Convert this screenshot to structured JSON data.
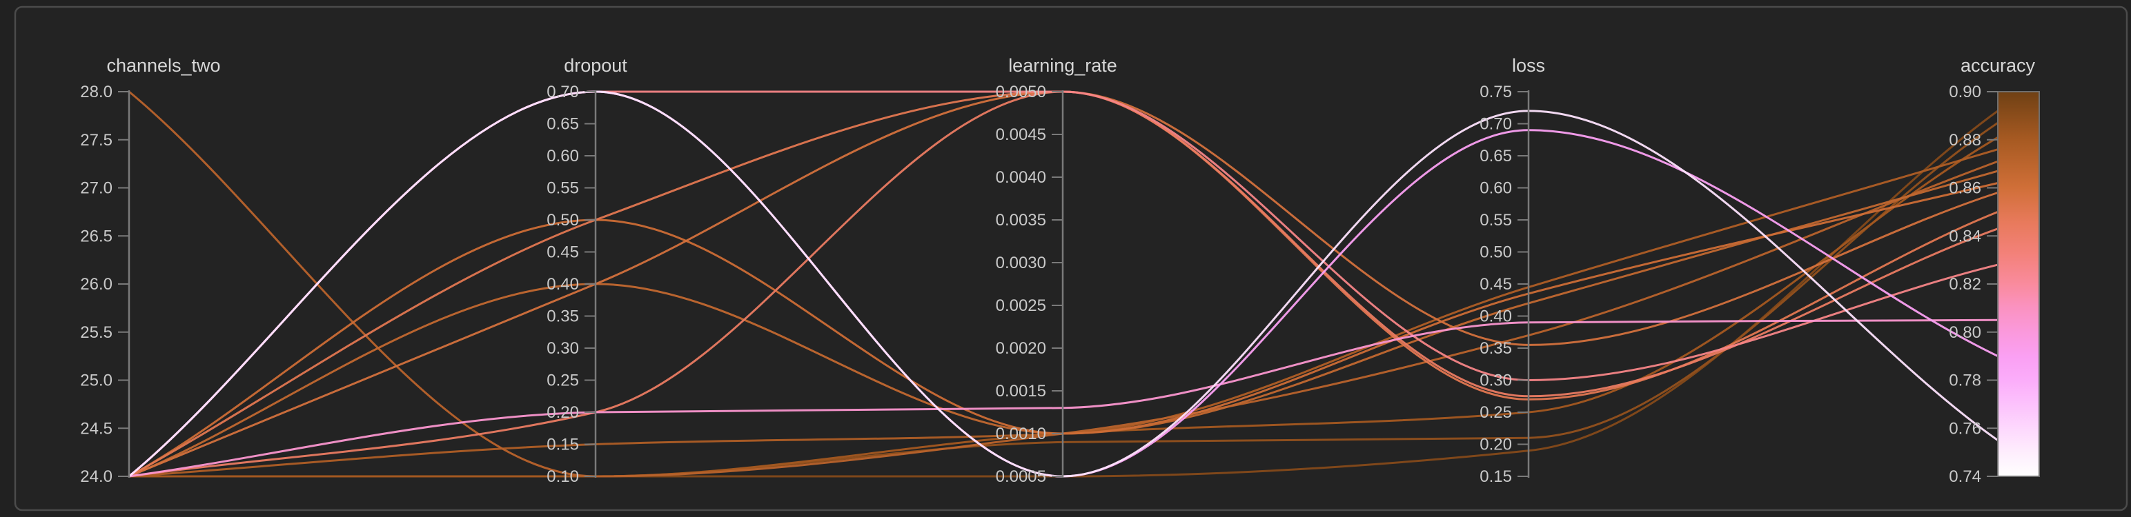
{
  "panel": {
    "background": "#232323",
    "border_color": "#4b4b4b",
    "axis_color": "#7a7a7a",
    "text_color": "#cfcfcf"
  },
  "chart_data": {
    "type": "parallel-coordinates",
    "color_by": "accuracy",
    "legend_position": "right-colorbar",
    "grid": false,
    "axes": [
      {
        "key": "channels_two",
        "label": "channels_two",
        "min": 24.0,
        "max": 28.0,
        "tick_values": [
          28.0,
          27.5,
          27.0,
          26.5,
          26.0,
          25.5,
          25.0,
          24.5,
          24.0
        ],
        "tick_labels": [
          "28.0",
          "27.5",
          "27.0",
          "26.5",
          "26.0",
          "25.5",
          "25.0",
          "24.5",
          "24.0"
        ]
      },
      {
        "key": "dropout",
        "label": "dropout",
        "min": 0.1,
        "max": 0.7,
        "tick_values": [
          0.7,
          0.65,
          0.6,
          0.55,
          0.5,
          0.45,
          0.4,
          0.35,
          0.3,
          0.25,
          0.2,
          0.15,
          0.1
        ],
        "tick_labels": [
          "0.70",
          "0.65",
          "0.60",
          "0.55",
          "0.50",
          "0.45",
          "0.40",
          "0.35",
          "0.30",
          "0.25",
          "0.20",
          "0.15",
          "0.10"
        ]
      },
      {
        "key": "learning_rate",
        "label": "learning_rate",
        "min": 0.0005,
        "max": 0.005,
        "tick_values": [
          0.005,
          0.0045,
          0.004,
          0.0035,
          0.003,
          0.0025,
          0.002,
          0.0015,
          0.001,
          0.0005
        ],
        "tick_labels": [
          "0.0050",
          "0.0045",
          "0.0040",
          "0.0035",
          "0.0030",
          "0.0025",
          "0.0020",
          "0.0015",
          "0.0010",
          "0.0005"
        ]
      },
      {
        "key": "loss",
        "label": "loss",
        "min": 0.15,
        "max": 0.75,
        "tick_values": [
          0.75,
          0.7,
          0.65,
          0.6,
          0.55,
          0.5,
          0.45,
          0.4,
          0.35,
          0.3,
          0.25,
          0.2,
          0.15
        ],
        "tick_labels": [
          "0.75",
          "0.70",
          "0.65",
          "0.60",
          "0.55",
          "0.50",
          "0.45",
          "0.40",
          "0.35",
          "0.30",
          "0.25",
          "0.20",
          "0.15"
        ]
      },
      {
        "key": "accuracy",
        "label": "accuracy",
        "min": 0.74,
        "max": 0.9,
        "tick_values": [
          0.9,
          0.88,
          0.86,
          0.84,
          0.82,
          0.8,
          0.78,
          0.76,
          0.74
        ],
        "tick_labels": [
          "0.90",
          "0.88",
          "0.86",
          "0.84",
          "0.82",
          "0.80",
          "0.78",
          "0.76",
          "0.74"
        ]
      }
    ],
    "runs": [
      {
        "channels_two": 24,
        "dropout": 0.7,
        "learning_rate": 0.0005,
        "loss": 0.72,
        "accuracy": 0.755
      },
      {
        "channels_two": 24,
        "dropout": 0.7,
        "learning_rate": 0.0005,
        "loss": 0.69,
        "accuracy": 0.79
      },
      {
        "channels_two": 24,
        "dropout": 0.2,
        "learning_rate": 0.0013,
        "loss": 0.39,
        "accuracy": 0.805
      },
      {
        "channels_two": 24,
        "dropout": 0.7,
        "learning_rate": 0.005,
        "loss": 0.3,
        "accuracy": 0.828
      },
      {
        "channels_two": 24,
        "dropout": 0.2,
        "learning_rate": 0.005,
        "loss": 0.275,
        "accuracy": 0.843
      },
      {
        "channels_two": 24,
        "dropout": 0.5,
        "learning_rate": 0.005,
        "loss": 0.27,
        "accuracy": 0.85
      },
      {
        "channels_two": 24,
        "dropout": 0.4,
        "learning_rate": 0.005,
        "loss": 0.355,
        "accuracy": 0.858
      },
      {
        "channels_two": 24,
        "dropout": 0.5,
        "learning_rate": 0.001,
        "loss": 0.435,
        "accuracy": 0.862
      },
      {
        "channels_two": 24,
        "dropout": 0.4,
        "learning_rate": 0.001,
        "loss": 0.42,
        "accuracy": 0.867
      },
      {
        "channels_two": 28,
        "dropout": 0.1,
        "learning_rate": 0.001,
        "loss": 0.37,
        "accuracy": 0.871
      },
      {
        "channels_two": 24,
        "dropout": 0.15,
        "learning_rate": 0.001,
        "loss": 0.445,
        "accuracy": 0.876
      },
      {
        "channels_two": 24,
        "dropout": 0.1,
        "learning_rate": 0.001,
        "loss": 0.25,
        "accuracy": 0.881
      },
      {
        "channels_two": 24,
        "dropout": 0.1,
        "learning_rate": 0.0009,
        "loss": 0.21,
        "accuracy": 0.887
      },
      {
        "channels_two": 24,
        "dropout": 0.1,
        "learning_rate": 0.0005,
        "loss": 0.19,
        "accuracy": 0.892
      }
    ],
    "colormap": [
      {
        "t": 0.0,
        "color": "#ffffff"
      },
      {
        "t": 0.06,
        "color": "#feeefd"
      },
      {
        "t": 0.125,
        "color": "#fdd8fd"
      },
      {
        "t": 0.19,
        "color": "#fcc1fc"
      },
      {
        "t": 0.25,
        "color": "#fbadfa"
      },
      {
        "t": 0.31,
        "color": "#faa0f3"
      },
      {
        "t": 0.375,
        "color": "#fa99dc"
      },
      {
        "t": 0.44,
        "color": "#fa92c0"
      },
      {
        "t": 0.5,
        "color": "#f98b9d"
      },
      {
        "t": 0.58,
        "color": "#f38179"
      },
      {
        "t": 0.66,
        "color": "#e87a5c"
      },
      {
        "t": 0.75,
        "color": "#d06f38"
      },
      {
        "t": 0.875,
        "color": "#a75a22"
      },
      {
        "t": 1.0,
        "color": "#6f4014"
      }
    ]
  }
}
